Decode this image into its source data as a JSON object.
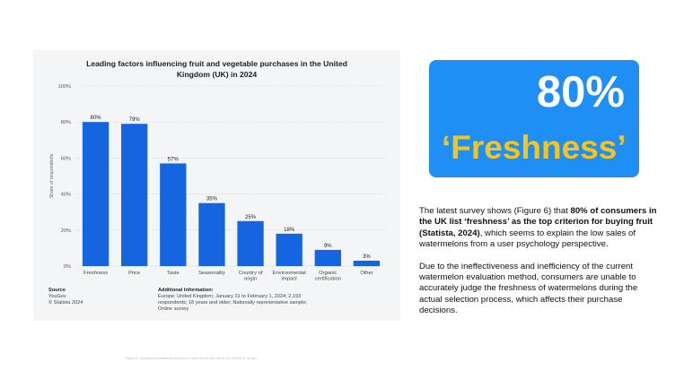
{
  "chart_data": {
    "type": "bar",
    "title": "Leading factors influencing fruit and vegetable purchases in the United Kingdom (UK) in 2024",
    "ylabel": "Share of respondents",
    "xlabel": "",
    "ylim": [
      0,
      100
    ],
    "yticks": [
      "0%",
      "20%",
      "40%",
      "60%",
      "80%",
      "100%"
    ],
    "categories": [
      "Freshness",
      "Price",
      "Taste",
      "Seasonality",
      "Country of origin",
      "Environmental impact",
      "Organic certification",
      "Other"
    ],
    "values": [
      80,
      79,
      57,
      35,
      25,
      18,
      9,
      3
    ],
    "value_labels": [
      "80%",
      "79%",
      "57%",
      "35%",
      "25%",
      "18%",
      "9%",
      "3%"
    ],
    "bar_color": "#1565e0",
    "grid": true,
    "legend": "none"
  },
  "chart_meta": {
    "title_line1": "Leading factors influencing fruit and vegetable purchases in the United",
    "title_line2": "Kingdom (UK) in 2024",
    "source_heading": "Source",
    "source_name": "YouGov",
    "copyright": "© Statista 2024",
    "info_heading": "Additional Information:",
    "info_text": "Europe; United Kingdom; January 31 to February 1, 2024; 2,193 respondents; 18 years and older; Nationally representative sample; Online survey"
  },
  "highlight": {
    "value": "80%",
    "label": "‘Freshness’",
    "box_color": "#1f8ef5",
    "label_color": "#f5c51e"
  },
  "body": {
    "p1_a": "The latest survey shows (Figure 6) that ",
    "p1_b": "80% of consumers in the UK list  ‘freshness’ as  the top criterion for buying fruit (Statista, 2024)",
    "p1_c": ", which seems to explain the low sales of  watermelons  from  a  user psychology  perspective.",
    "p2": "Due  to  the ineffectiveness  and  inefficiency of the current watermelon evaluation method, consumers are unable to  accurately judge the freshness of watermelons during the actual selection process,  which affects their purchase decisions."
  },
  "caption": "Figure 6 · Average purchases per person per week of fruit and nuts in UK (2023/24), by type."
}
